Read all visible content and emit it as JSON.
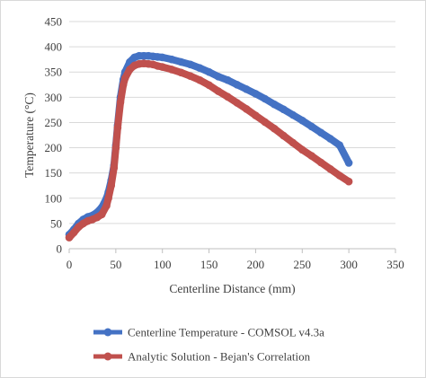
{
  "chart_data": {
    "type": "line",
    "xlabel": "Centerline Distance (mm)",
    "ylabel": "Temperature (°C)",
    "xlim": [
      0,
      350
    ],
    "ylim": [
      0,
      450
    ],
    "xticks": [
      0,
      50,
      100,
      150,
      200,
      250,
      300,
      350
    ],
    "yticks": [
      0,
      50,
      100,
      150,
      200,
      250,
      300,
      350,
      400,
      450
    ],
    "grid": "horizontal",
    "legend_position": "bottom",
    "series": [
      {
        "name": "Centerline Temperature - COMSOL v4.3a",
        "color": "#4472C4",
        "marker": "circle",
        "x": [
          0,
          5,
          10,
          15,
          20,
          25,
          30,
          35,
          40,
          42,
          45,
          48,
          50,
          52,
          55,
          58,
          60,
          65,
          70,
          75,
          80,
          85,
          90,
          95,
          100,
          110,
          120,
          130,
          140,
          150,
          160,
          170,
          180,
          190,
          200,
          210,
          220,
          230,
          240,
          250,
          260,
          270,
          280,
          290,
          300
        ],
        "y": [
          28,
          38,
          50,
          58,
          63,
          66,
          72,
          82,
          100,
          112,
          135,
          165,
          205,
          245,
          300,
          335,
          350,
          370,
          379,
          382,
          382,
          382,
          381,
          380,
          379,
          375,
          370,
          365,
          358,
          350,
          341,
          334,
          325,
          316,
          307,
          297,
          286,
          276,
          265,
          254,
          242,
          230,
          218,
          205,
          170
        ]
      },
      {
        "name": "Analytic Solution - Bejan's Correlation",
        "color": "#C0504D",
        "marker": "circle",
        "x": [
          0,
          5,
          10,
          15,
          20,
          25,
          30,
          35,
          40,
          42,
          45,
          48,
          50,
          52,
          55,
          58,
          60,
          65,
          70,
          75,
          80,
          85,
          90,
          95,
          100,
          110,
          120,
          130,
          140,
          150,
          160,
          170,
          180,
          190,
          200,
          210,
          220,
          230,
          240,
          250,
          260,
          270,
          280,
          290,
          300
        ],
        "y": [
          22,
          32,
          43,
          50,
          55,
          58,
          62,
          68,
          85,
          100,
          125,
          160,
          200,
          240,
          290,
          325,
          338,
          355,
          363,
          366,
          367,
          366,
          365,
          362,
          360,
          355,
          349,
          342,
          334,
          324,
          312,
          301,
          289,
          277,
          264,
          251,
          238,
          224,
          210,
          196,
          184,
          171,
          158,
          145,
          133
        ]
      }
    ]
  }
}
